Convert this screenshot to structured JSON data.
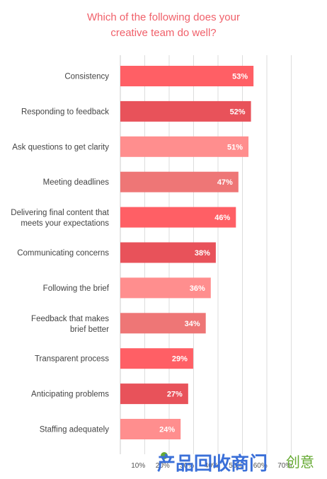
{
  "chart_data": {
    "type": "bar",
    "orientation": "horizontal",
    "title_lines": [
      "Which of the following does your",
      "creative team do well?"
    ],
    "categories": [
      [
        "Consistency"
      ],
      [
        "Responding to feedback"
      ],
      [
        "Ask questions to get clarity"
      ],
      [
        "Meeting deadlines"
      ],
      [
        "Delivering final content that",
        "meets your expectations"
      ],
      [
        "Communicating concerns"
      ],
      [
        "Following the brief"
      ],
      [
        "Feedback that makes",
        "brief better"
      ],
      [
        "Transparent process"
      ],
      [
        "Anticipating problems"
      ],
      [
        "Staffing adequately"
      ]
    ],
    "values": [
      53,
      52,
      51,
      47,
      46,
      38,
      36,
      34,
      29,
      27,
      24
    ],
    "value_labels": [
      "53%",
      "52%",
      "51%",
      "47%",
      "46%",
      "38%",
      "36%",
      "34%",
      "29%",
      "27%",
      "24%"
    ],
    "xticks": [
      10,
      20,
      30,
      40,
      50,
      60,
      70
    ],
    "xtick_labels": [
      "10%",
      "20%",
      "30%",
      "40%",
      "50%",
      "60%",
      "70%"
    ],
    "xlim": [
      0,
      70
    ],
    "grid": true,
    "bar_colors": [
      "#ff5f65",
      "#e8525a",
      "#ff8e8e",
      "#ee7676",
      "#ff5f65",
      "#e8525a",
      "#ff8e8e",
      "#ee7676",
      "#ff5f65",
      "#e8525a",
      "#ff8e8e"
    ]
  },
  "watermark": {
    "text": "产品回收商门",
    "suffix": "创意"
  }
}
